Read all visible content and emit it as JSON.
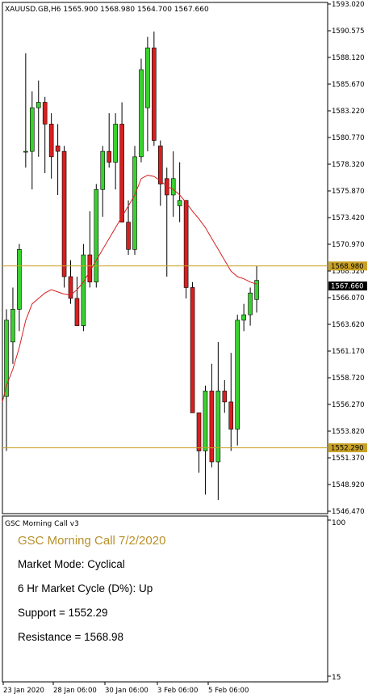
{
  "main_chart": {
    "header": "XAUUSD.GB,H6  1565.900 1568.980 1564.700 1567.660",
    "price_labels": [
      "1593.020",
      "1590.575",
      "1588.120",
      "1585.670",
      "1583.220",
      "1580.770",
      "1578.320",
      "1575.870",
      "1573.420",
      "1570.970",
      "1568.520",
      "1566.070",
      "1563.620",
      "1561.170",
      "1558.720",
      "1556.270",
      "1553.820",
      "1551.370",
      "1548.920",
      "1546.470"
    ],
    "resistance_tag": "1568.980",
    "current_tag": "1567.660",
    "support_tag": "1552.290"
  },
  "indicator": {
    "header": "GSC Morning Call v3",
    "title": "GSC Morning Call 7/2/2020",
    "lines": [
      "Market Mode: Cyclical",
      "6 Hr Market Cycle (D%): Up",
      "Support = 1552.29",
      "Resistance = 1568.98"
    ],
    "scale_top": "100",
    "scale_bottom": "15"
  },
  "time_axis": [
    "23 Jan 2020",
    "28 Jan 06:00",
    "30 Jan 06:00",
    "3 Feb 06:00",
    "5 Feb 06:00"
  ],
  "colors": {
    "bull": "#3ad12f",
    "bear": "#d81f1f",
    "ma": "#d81f1f",
    "level": "#c9a227",
    "title": "#b8902a"
  },
  "chart_data": {
    "type": "candlestick",
    "symbol": "XAUUSD.GB",
    "timeframe": "H6",
    "levels": {
      "support": 1552.29,
      "resistance": 1568.98,
      "current": 1567.66
    },
    "candles": [
      {
        "o": 1557.0,
        "h": 1565.0,
        "l": 1552.0,
        "c": 1564.0
      },
      {
        "o": 1562.0,
        "h": 1567.0,
        "l": 1560.0,
        "c": 1565.0
      },
      {
        "o": 1565.0,
        "h": 1571.0,
        "l": 1563.0,
        "c": 1570.5
      },
      {
        "o": 1579.5,
        "h": 1588.5,
        "l": 1578.0,
        "c": 1579.5
      },
      {
        "o": 1579.5,
        "h": 1585.0,
        "l": 1576.0,
        "c": 1583.5
      },
      {
        "o": 1583.5,
        "h": 1586.0,
        "l": 1579.0,
        "c": 1584.0
      },
      {
        "o": 1584.0,
        "h": 1584.5,
        "l": 1577.5,
        "c": 1582.0
      },
      {
        "o": 1582.0,
        "h": 1583.0,
        "l": 1577.0,
        "c": 1579.0
      },
      {
        "o": 1580.0,
        "h": 1582.0,
        "l": 1575.5,
        "c": 1579.5
      },
      {
        "o": 1579.5,
        "h": 1580.0,
        "l": 1567.0,
        "c": 1568.0
      },
      {
        "o": 1568.0,
        "h": 1569.5,
        "l": 1565.5,
        "c": 1566.0
      },
      {
        "o": 1566.0,
        "h": 1568.0,
        "l": 1563.5,
        "c": 1563.5
      },
      {
        "o": 1563.5,
        "h": 1571.0,
        "l": 1563.0,
        "c": 1570.0
      },
      {
        "o": 1570.0,
        "h": 1574.0,
        "l": 1567.0,
        "c": 1567.5
      },
      {
        "o": 1567.5,
        "h": 1576.5,
        "l": 1567.0,
        "c": 1576.0
      },
      {
        "o": 1576.0,
        "h": 1580.0,
        "l": 1573.5,
        "c": 1579.5
      },
      {
        "o": 1579.5,
        "h": 1583.0,
        "l": 1578.0,
        "c": 1578.5
      },
      {
        "o": 1578.5,
        "h": 1583.0,
        "l": 1576.0,
        "c": 1582.0
      },
      {
        "o": 1582.0,
        "h": 1584.0,
        "l": 1573.0,
        "c": 1573.0
      },
      {
        "o": 1573.0,
        "h": 1575.0,
        "l": 1570.0,
        "c": 1570.5
      },
      {
        "o": 1570.5,
        "h": 1580.0,
        "l": 1570.0,
        "c": 1579.0
      },
      {
        "o": 1579.0,
        "h": 1588.0,
        "l": 1578.5,
        "c": 1587.0
      },
      {
        "o": 1583.5,
        "h": 1590.0,
        "l": 1579.5,
        "c": 1589.0
      },
      {
        "o": 1589.0,
        "h": 1590.5,
        "l": 1580.0,
        "c": 1580.5
      },
      {
        "o": 1580.0,
        "h": 1580.5,
        "l": 1574.5,
        "c": 1576.5
      },
      {
        "o": 1577.0,
        "h": 1578.0,
        "l": 1568.0,
        "c": 1575.5
      },
      {
        "o": 1575.5,
        "h": 1579.5,
        "l": 1573.5,
        "c": 1577.0
      },
      {
        "o": 1574.5,
        "h": 1578.5,
        "l": 1573.0,
        "c": 1575.0
      },
      {
        "o": 1575.0,
        "h": 1575.0,
        "l": 1566.0,
        "c": 1567.0
      },
      {
        "o": 1567.0,
        "h": 1567.5,
        "l": 1555.5,
        "c": 1555.5
      },
      {
        "o": 1555.5,
        "h": 1555.5,
        "l": 1550.0,
        "c": 1552.0
      },
      {
        "o": 1552.0,
        "h": 1558.0,
        "l": 1548.0,
        "c": 1557.5
      },
      {
        "o": 1557.5,
        "h": 1560.0,
        "l": 1550.5,
        "c": 1551.0
      },
      {
        "o": 1551.0,
        "h": 1562.0,
        "l": 1547.5,
        "c": 1557.5
      },
      {
        "o": 1557.5,
        "h": 1558.5,
        "l": 1555.5,
        "c": 1556.5
      },
      {
        "o": 1556.5,
        "h": 1561.0,
        "l": 1552.0,
        "c": 1554.0
      },
      {
        "o": 1554.0,
        "h": 1564.5,
        "l": 1552.5,
        "c": 1564.0
      },
      {
        "o": 1564.0,
        "h": 1565.5,
        "l": 1563.0,
        "c": 1564.5
      },
      {
        "o": 1564.5,
        "h": 1567.0,
        "l": 1563.5,
        "c": 1566.5
      },
      {
        "o": 1565.9,
        "h": 1568.98,
        "l": 1564.7,
        "c": 1567.66
      }
    ],
    "moving_average": [
      1558.0,
      1559.5,
      1561.5,
      1564.0,
      1565.5,
      1566.0,
      1566.5,
      1566.8,
      1566.6,
      1566.4,
      1566.3,
      1566.8,
      1567.5,
      1568.5,
      1569.5,
      1570.5,
      1571.5,
      1572.5,
      1573.5,
      1574.5,
      1575.5,
      1577.0,
      1577.3,
      1577.2,
      1576.8,
      1576.3,
      1576.0,
      1575.5,
      1574.8,
      1574.0,
      1573.3,
      1572.5,
      1571.5,
      1570.5,
      1569.5,
      1568.5,
      1568.0,
      1567.8,
      1567.5,
      1567.3
    ],
    "price_axis": {
      "min": 1546.47,
      "max": 1593.02
    },
    "time_labels": [
      "23 Jan 2020",
      "28 Jan 06:00",
      "30 Jan 06:00",
      "3 Feb 06:00",
      "5 Feb 06:00"
    ]
  }
}
